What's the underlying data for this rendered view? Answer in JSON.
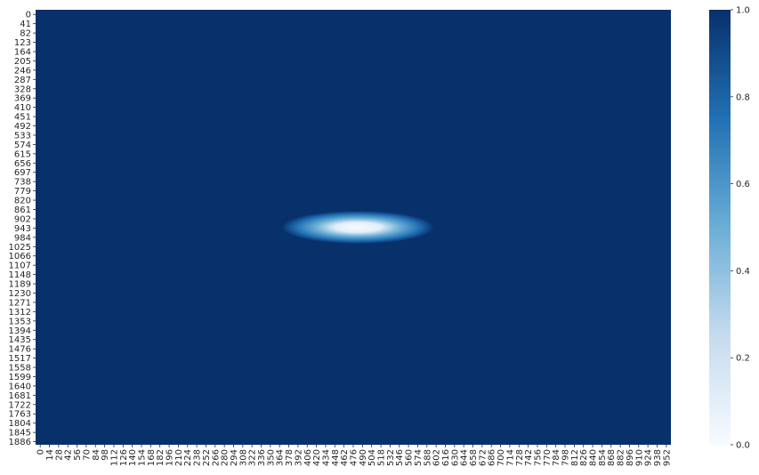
{
  "chart_data": {
    "type": "heatmap",
    "title": "",
    "xlabel": "",
    "ylabel": "",
    "x_tick_labels": [
      "0",
      "14",
      "28",
      "42",
      "56",
      "70",
      "84",
      "98",
      "112",
      "126",
      "140",
      "154",
      "168",
      "182",
      "196",
      "210",
      "224",
      "238",
      "252",
      "266",
      "280",
      "294",
      "308",
      "322",
      "336",
      "350",
      "364",
      "378",
      "392",
      "406",
      "420",
      "434",
      "448",
      "462",
      "476",
      "490",
      "504",
      "518",
      "532",
      "546",
      "560",
      "574",
      "588",
      "602",
      "616",
      "630",
      "644",
      "658",
      "672",
      "686",
      "700",
      "714",
      "728",
      "742",
      "756",
      "770",
      "784",
      "798",
      "812",
      "826",
      "840",
      "854",
      "868",
      "882",
      "896",
      "910",
      "924",
      "938",
      "952"
    ],
    "y_tick_labels": [
      "0",
      "41",
      "82",
      "123",
      "164",
      "205",
      "246",
      "287",
      "328",
      "369",
      "410",
      "451",
      "492",
      "533",
      "574",
      "615",
      "656",
      "697",
      "738",
      "779",
      "820",
      "861",
      "902",
      "943",
      "984",
      "1025",
      "1066",
      "1107",
      "1148",
      "1189",
      "1230",
      "1271",
      "1312",
      "1353",
      "1394",
      "1435",
      "1476",
      "1517",
      "1558",
      "1599",
      "1640",
      "1681",
      "1722",
      "1763",
      "1804",
      "1845",
      "1886"
    ],
    "x_range": [
      0,
      966
    ],
    "y_range": [
      0,
      1920
    ],
    "background_value": 1.0,
    "feature": {
      "shape": "gaussian-dip",
      "center_x": 490,
      "center_y": 960,
      "extent_x": 150,
      "extent_y": 75,
      "min_value": 0.0
    },
    "colorbar": {
      "colormap": "Blues",
      "range": [
        0.0,
        1.0
      ],
      "tick_values": [
        0.0,
        0.2,
        0.4,
        0.6,
        0.8,
        1.0
      ],
      "tick_labels": [
        "0.0",
        "0.2",
        "0.4",
        "0.6",
        "0.8",
        "1.0"
      ]
    },
    "colors": {
      "high": "#08306b",
      "mid_high": "#2171b5",
      "mid": "#6baed6",
      "mid_low": "#c6dbef",
      "low": "#f7fbff"
    }
  }
}
